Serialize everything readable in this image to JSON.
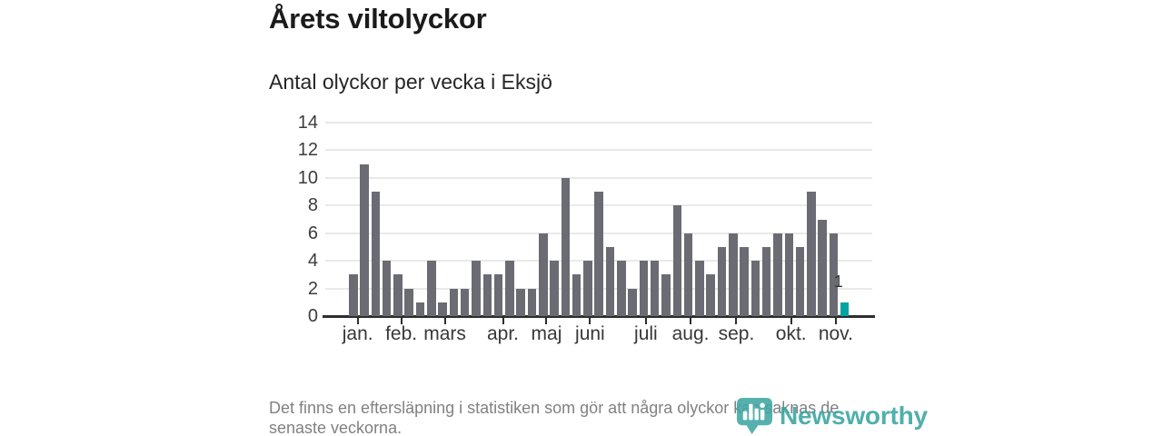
{
  "header": {
    "title": "Årets viltolyckor",
    "subtitle": "Antal olyckor per vecka i Eksjö"
  },
  "chart_data": {
    "type": "bar",
    "title": "Årets viltolyckor",
    "subtitle": "Antal olyckor per vecka i Eksjö",
    "x_unit": "vecka",
    "values": [
      3,
      11,
      9,
      4,
      3,
      2,
      1,
      4,
      1,
      2,
      2,
      4,
      3,
      3,
      4,
      2,
      2,
      6,
      4,
      10,
      3,
      4,
      9,
      5,
      4,
      2,
      4,
      4,
      3,
      8,
      6,
      4,
      3,
      5,
      6,
      5,
      4,
      5,
      6,
      6,
      5,
      9,
      7,
      6,
      1
    ],
    "ylim": [
      0,
      14
    ],
    "yticks": [
      0,
      2,
      4,
      6,
      8,
      10,
      12,
      14
    ],
    "months": [
      {
        "label": "jan.",
        "week": 1.4
      },
      {
        "label": "feb.",
        "week": 5.3
      },
      {
        "label": "mars",
        "week": 9.2
      },
      {
        "label": "apr.",
        "week": 14.4
      },
      {
        "label": "maj",
        "week": 18.3
      },
      {
        "label": "juni",
        "week": 22.2
      },
      {
        "label": "juli",
        "week": 27.2
      },
      {
        "label": "aug.",
        "week": 31.2
      },
      {
        "label": "sep.",
        "week": 35.3
      },
      {
        "label": "okt.",
        "week": 40.2
      },
      {
        "label": "nov.",
        "week": 44.2
      }
    ],
    "last_bar": {
      "value": 1,
      "label": "1",
      "highlighted": true
    },
    "colors": {
      "bar": "#6b6b73",
      "highlight": "#00a2a2",
      "grid": "#e9e9e9",
      "axis": "#2e2e2e"
    },
    "grid": "horizontal",
    "legend": null
  },
  "footer": {
    "note_lines": [
      "Det finns en eftersläpning i statistiken som gör att några olyckor kan saknas de",
      "senaste veckorna."
    ],
    "brand": {
      "name": "Newsworthy",
      "color": "#38a5a1"
    }
  }
}
